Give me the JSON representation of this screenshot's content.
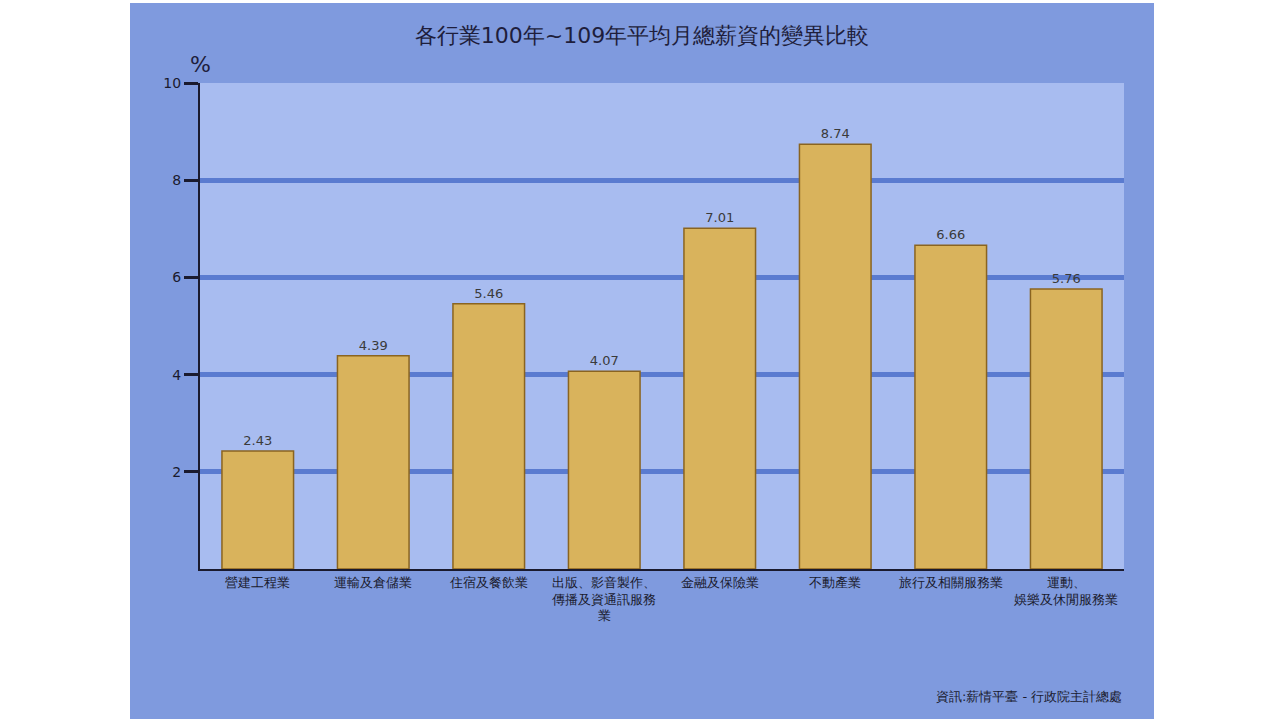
{
  "chart_data": {
    "type": "bar",
    "title": "各行業100年~109年平均月總薪資的變異比較",
    "y_label": "%",
    "categories": [
      "營建工程業",
      "運輸及倉儲業",
      "住宿及餐飲業",
      "出版、影音製作、傳播及資通訊服務業",
      "金融及保險業",
      "不動產業",
      "旅行及相關服務業",
      "運動、娛樂及休閒服務業"
    ],
    "values": [
      2.43,
      4.39,
      5.46,
      4.07,
      7.01,
      8.74,
      6.66,
      5.76
    ],
    "color": "#d9b35c",
    "ylim": [
      0,
      10
    ],
    "yticks": [
      2,
      4,
      6,
      8,
      10
    ],
    "grid": true,
    "data_labels": true,
    "source": "資訊:薪情平臺 - 行政院主計總處"
  }
}
